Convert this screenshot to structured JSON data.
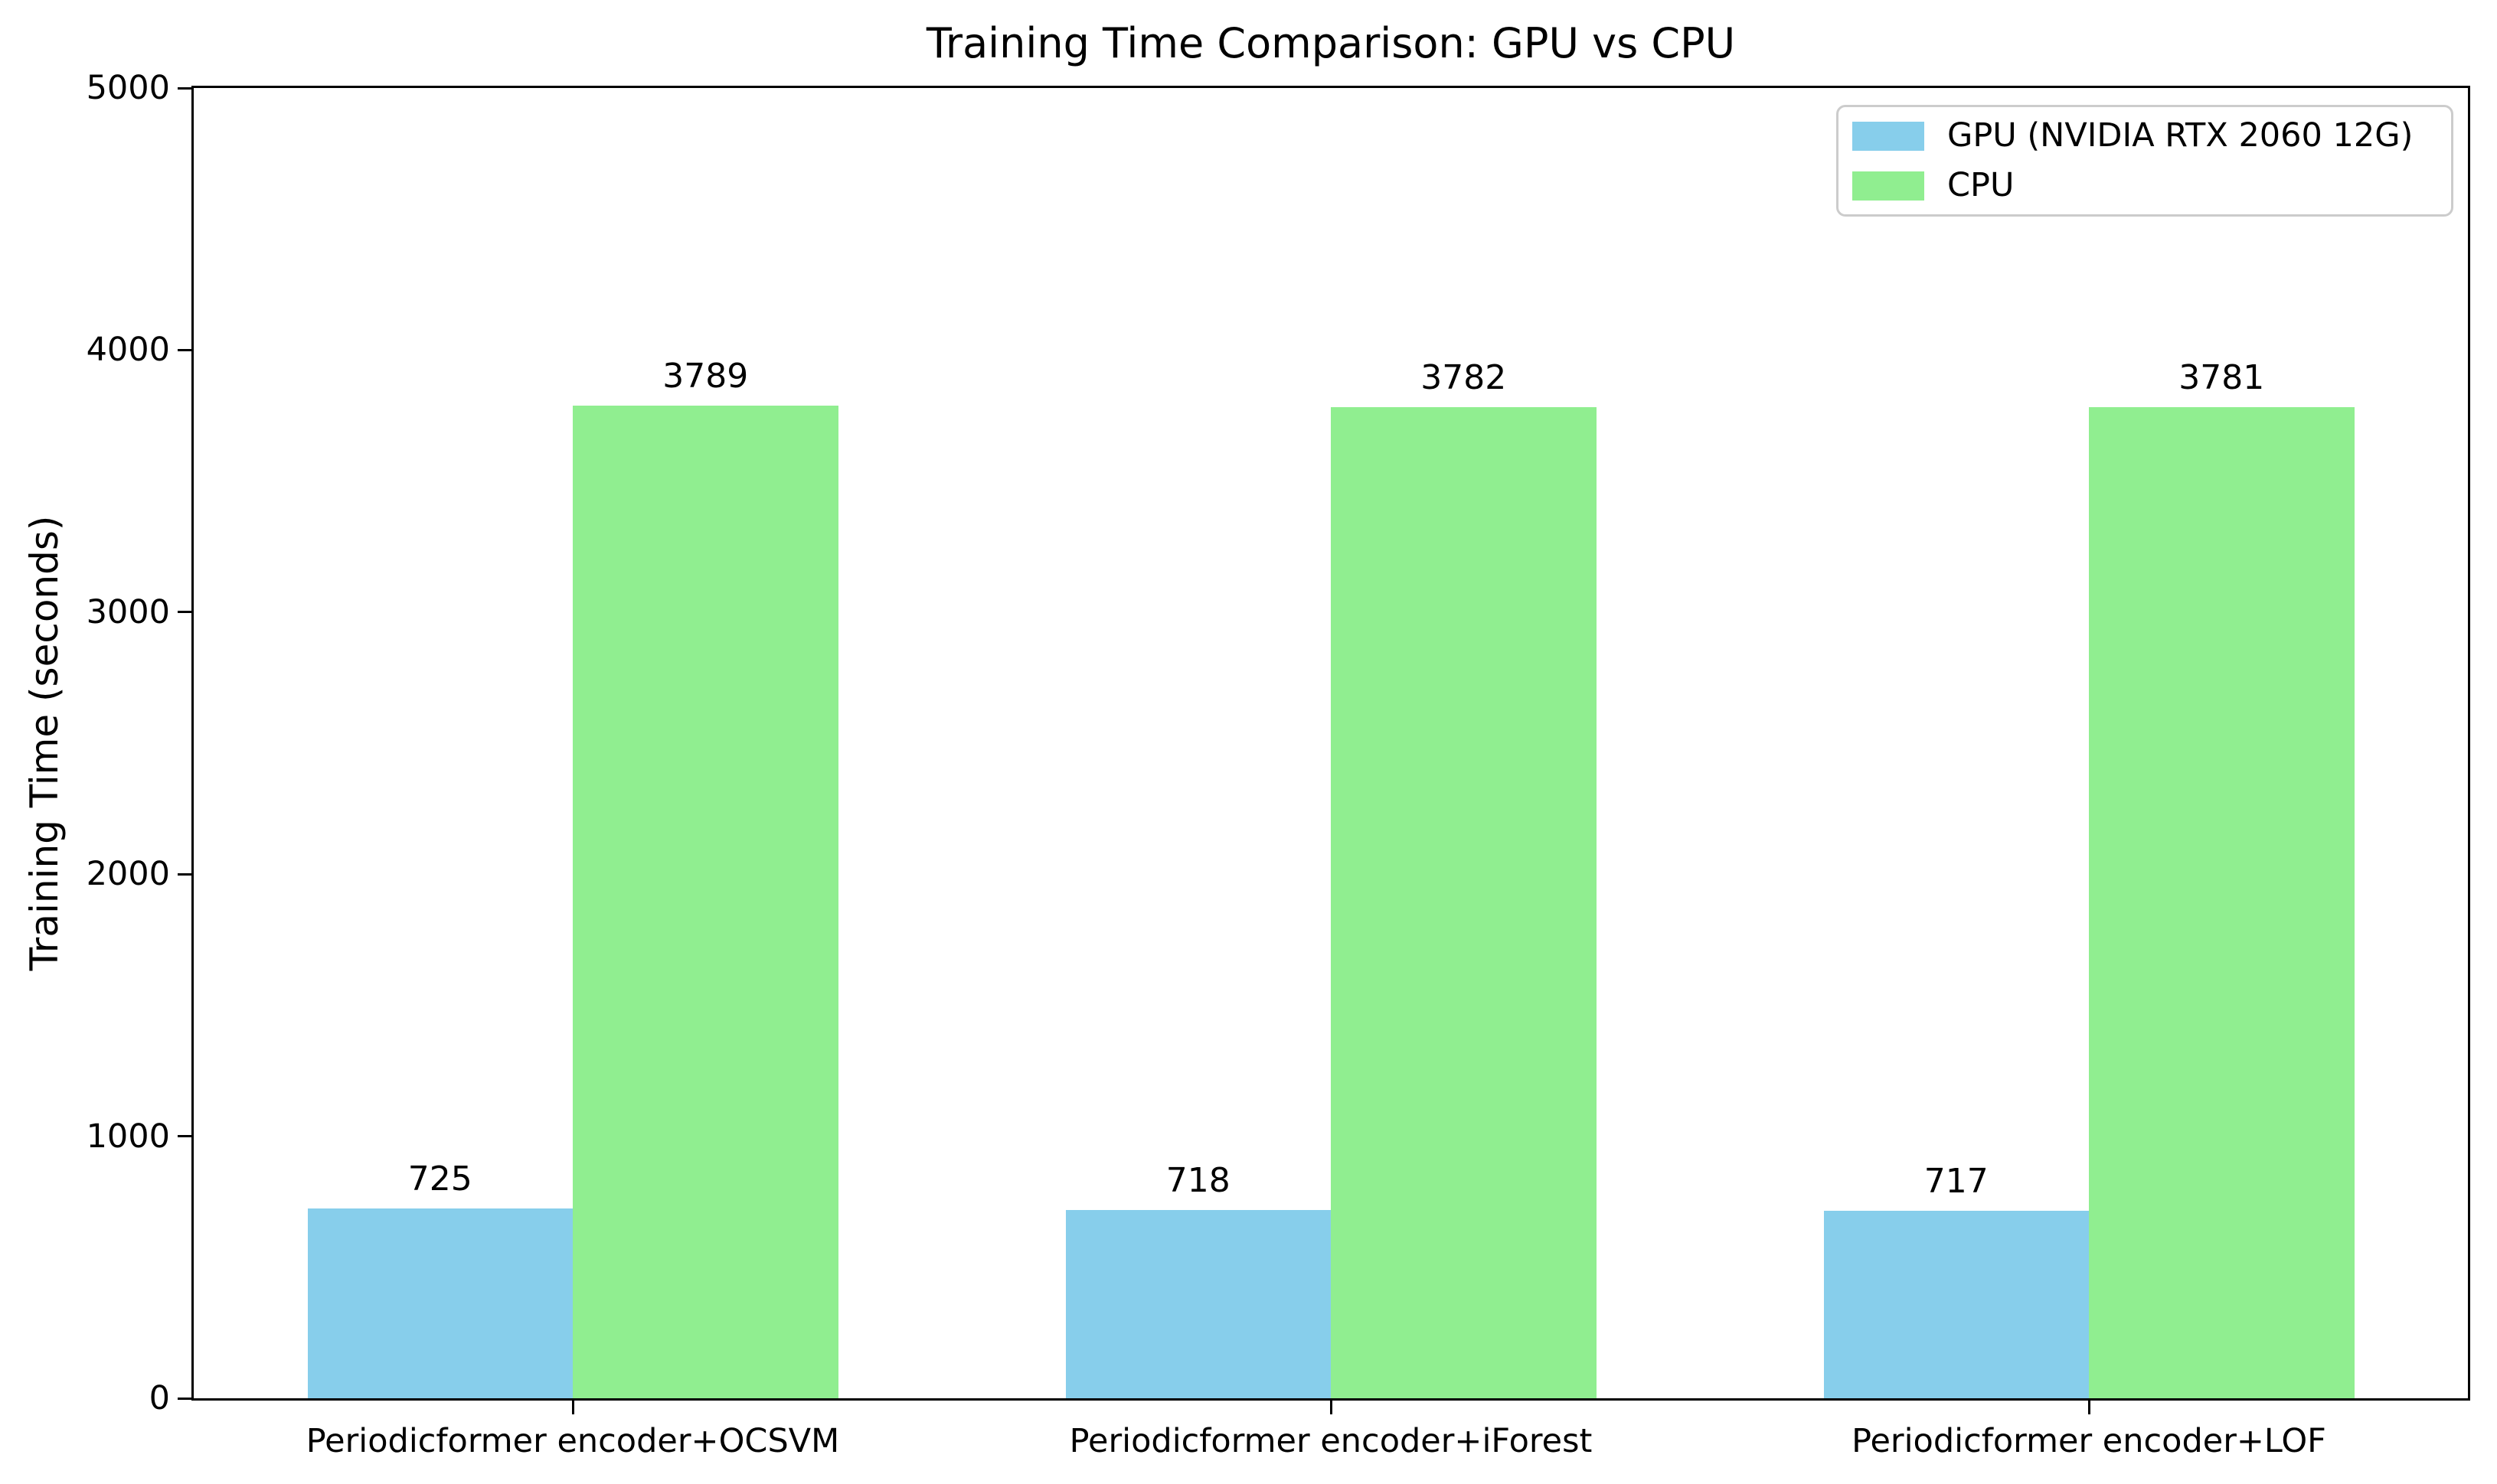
{
  "chart_data": {
    "type": "bar",
    "title": "Training Time Comparison: GPU vs CPU",
    "xlabel": "",
    "ylabel": "Training Time (seconds)",
    "categories": [
      "Periodicformer encoder+OCSVM",
      "Periodicformer encoder+iForest",
      "Periodicformer encoder+LOF"
    ],
    "series": [
      {
        "key": "gpu",
        "name": "GPU (NVIDIA RTX 2060 12G)",
        "color": "#87CEEB",
        "values": [
          725,
          718,
          717
        ]
      },
      {
        "key": "cpu",
        "name": "CPU",
        "color": "#90EE90",
        "values": [
          3789,
          3782,
          3781
        ]
      }
    ],
    "ylim": [
      0,
      5000
    ],
    "yticks": [
      0,
      1000,
      2000,
      3000,
      4000,
      5000
    ],
    "bar_width_units": 0.35,
    "grid": false,
    "value_labels": true,
    "legend_position": "upper right"
  }
}
